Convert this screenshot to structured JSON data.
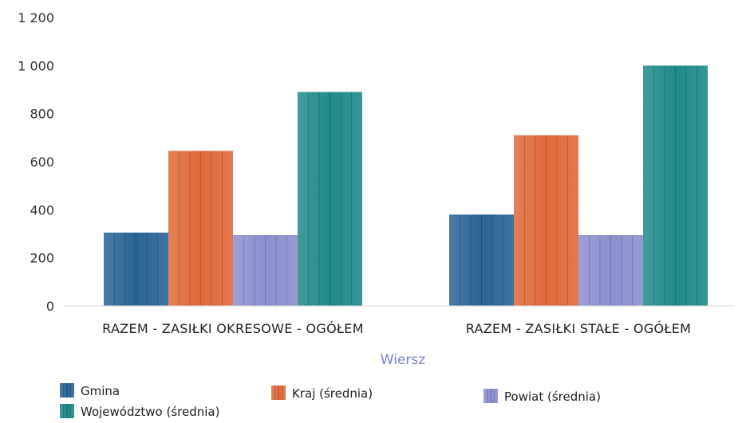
{
  "chart_data": {
    "type": "bar",
    "title": "",
    "xlabel": "Wiersz",
    "ylabel": "",
    "ylim": [
      0,
      1200
    ],
    "yticks": [
      0,
      200,
      400,
      600,
      800,
      1000,
      1200
    ],
    "ytick_labels": [
      "0",
      "200",
      "400",
      "600",
      "800",
      "1 000",
      "1 200"
    ],
    "grid": false,
    "legend_position": "bottom",
    "categories": [
      "RAZEM -  ZASIŁKI OKRESOWE - OGÓŁEM",
      "RAZEM -  ZASIŁKI STAŁE - OGÓŁEM"
    ],
    "series": [
      {
        "name": "Gmina",
        "values": [
          305,
          380
        ],
        "color": "#2a6496"
      },
      {
        "name": "Kraj (średnia)",
        "values": [
          645,
          710
        ],
        "color": "#e0693a"
      },
      {
        "name": "Powiat (średnia)",
        "values": [
          295,
          295
        ],
        "color": "#8c8fd0"
      },
      {
        "name": "Województwo (średnia)",
        "values": [
          890,
          1000
        ],
        "color": "#1f8a8a"
      }
    ]
  }
}
